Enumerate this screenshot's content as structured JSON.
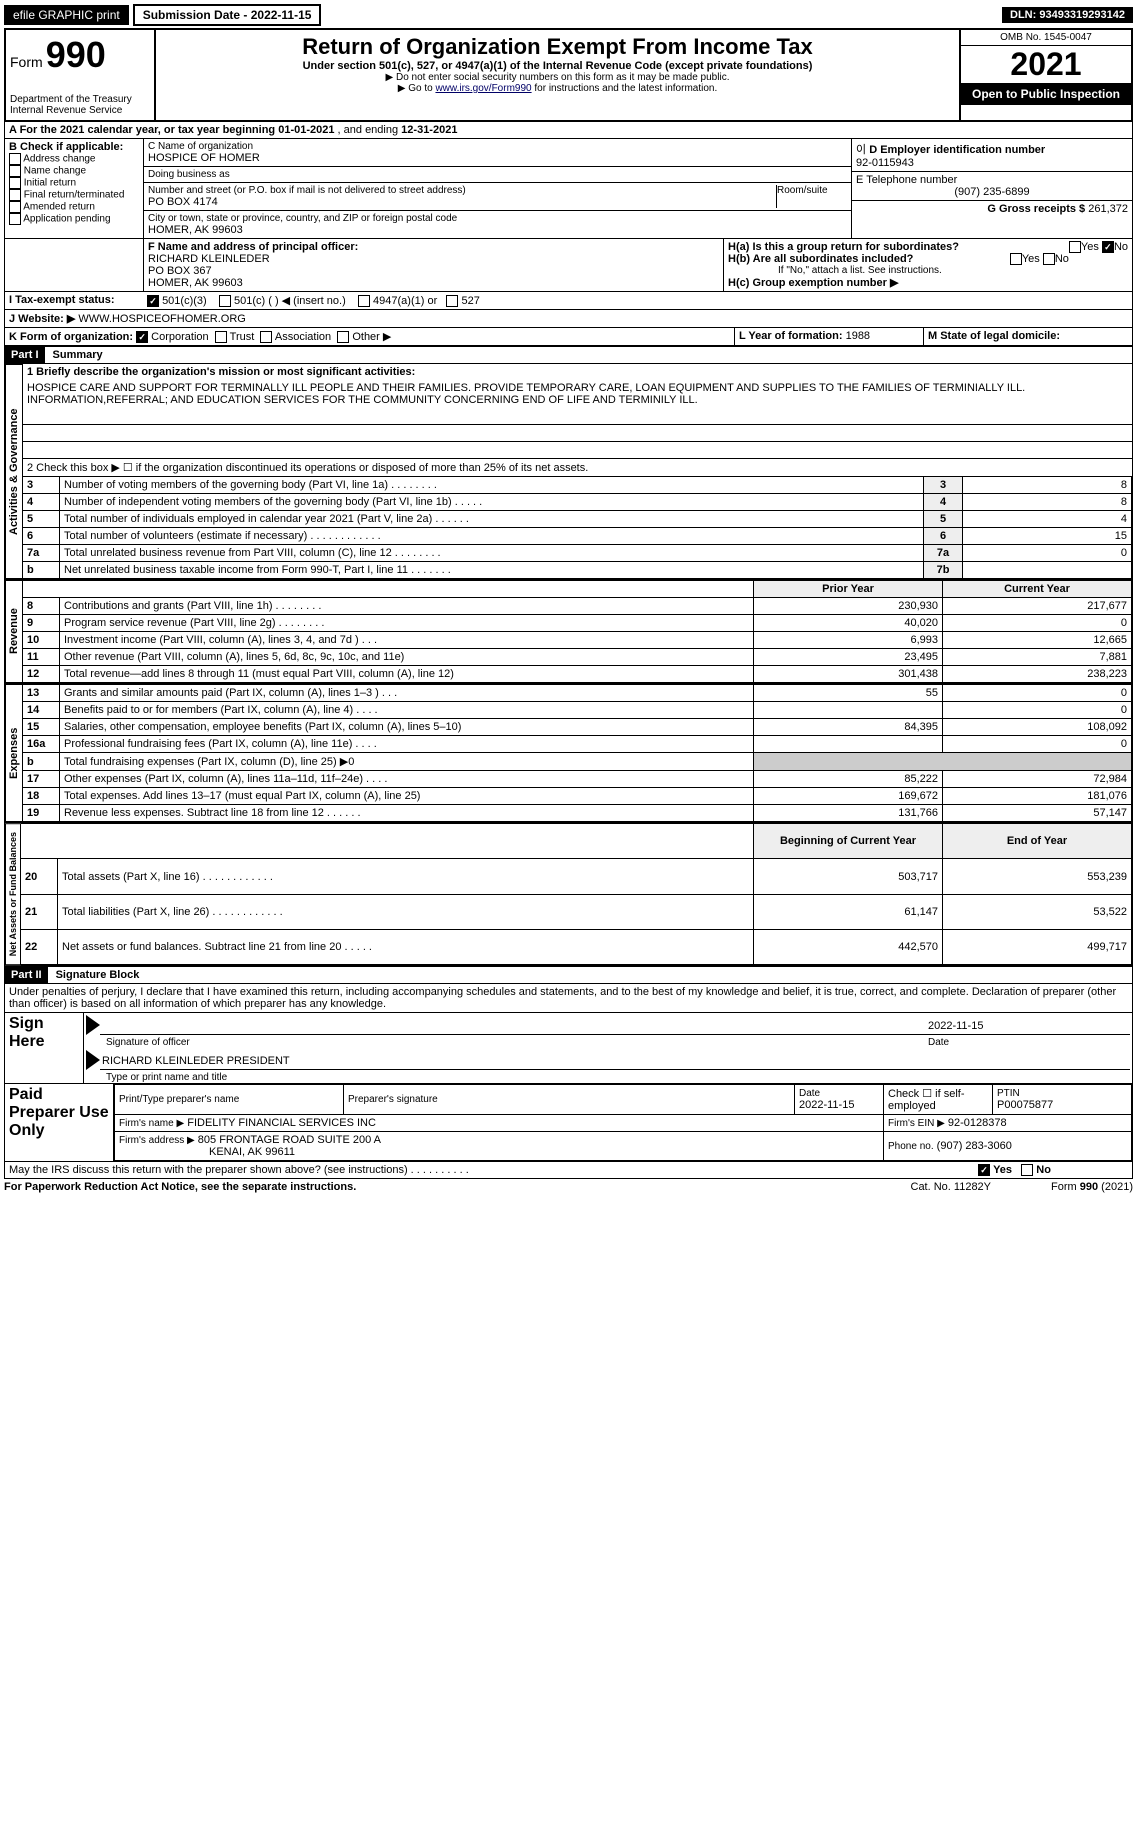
{
  "topbar": {
    "efile": "efile GRAPHIC print",
    "subdate_label": "Submission Date - 2022-11-15",
    "dln": "DLN: 93493319293142"
  },
  "header": {
    "form_word": "Form",
    "form_no": "990",
    "dept": "Department of the Treasury",
    "irs": "Internal Revenue Service",
    "title": "Return of Organization Exempt From Income Tax",
    "subtitle": "Under section 501(c), 527, or 4947(a)(1) of the Internal Revenue Code (except private foundations)",
    "note1": "▶ Do not enter social security numbers on this form as it may be made public.",
    "note2_pre": "▶ Go to ",
    "note2_link": "www.irs.gov/Form990",
    "note2_post": " for instructions and the latest information.",
    "omb": "OMB No. 1545-0047",
    "year": "2021",
    "public": "Open to Public Inspection"
  },
  "a_line": {
    "text_pre": "A For the 2021 calendar year, or tax year beginning ",
    "begin": "01-01-2021",
    "mid": "    , and ending ",
    "end": "12-31-2021"
  },
  "b": {
    "label": "B Check if applicable:",
    "items": [
      "Address change",
      "Name change",
      "Initial return",
      "Final return/terminated",
      "Amended return",
      "Application pending"
    ]
  },
  "c": {
    "label": "C Name of organization",
    "name": "HOSPICE OF HOMER",
    "dba_label": "Doing business as",
    "dba": "",
    "addr_label": "Number and street (or P.O. box if mail is not delivered to street address)",
    "room_label": "Room/suite",
    "addr": "PO BOX 4174",
    "city_label": "City or town, state or province, country, and ZIP or foreign postal code",
    "city": "HOMER, AK  99603"
  },
  "d": {
    "label": "D Employer identification number",
    "value": "92-0115943"
  },
  "e": {
    "label": "E Telephone number",
    "value": "(907) 235-6899"
  },
  "g": {
    "label": "G Gross receipts $",
    "value": "261,372"
  },
  "f": {
    "label": "F Name and address of principal officer:",
    "name": "RICHARD KLEINLEDER",
    "addr1": "PO BOX 367",
    "addr2": "HOMER, AK  99603"
  },
  "h": {
    "a": "H(a)  Is this a group return for subordinates?",
    "b": "H(b)  Are all subordinates included?",
    "note": "If \"No,\" attach a list. See instructions.",
    "c": "H(c)  Group exemption number ▶",
    "yes": "Yes",
    "no": "No"
  },
  "i": {
    "label": "I    Tax-exempt status:",
    "opts": [
      "501(c)(3)",
      "501(c) (   ) ◀ (insert no.)",
      "4947(a)(1) or",
      "527"
    ]
  },
  "j": {
    "label": "J   Website: ▶",
    "value": "WWW.HOSPICEOFHOMER.ORG"
  },
  "k": {
    "label": "K Form of organization:",
    "opts": [
      "Corporation",
      "Trust",
      "Association",
      "Other ▶"
    ]
  },
  "l": {
    "label": "L Year of formation:",
    "value": "1988"
  },
  "m": {
    "label": "M State of legal domicile:",
    "value": ""
  },
  "part1": {
    "tag": "Part I",
    "title": "Summary",
    "q1": "1  Briefly describe the organization's mission or most significant activities:",
    "mission": "HOSPICE CARE AND SUPPORT FOR TERMINALLY ILL PEOPLE AND THEIR FAMILIES. PROVIDE TEMPORARY CARE, LOAN EQUIPMENT AND SUPPLIES TO THE FAMILIES OF TERMINIALLY ILL. INFORMATION,REFERRAL; AND EDUCATION SERVICES FOR THE COMMUNITY CONCERNING END OF LIFE AND TERMINILY ILL.",
    "q2": "2   Check this box ▶ ☐  if the organization discontinued its operations or disposed of more than 25% of its net assets.",
    "rows_top": [
      {
        "n": "3",
        "t": "Number of voting members of the governing body (Part VI, line 1a)   .    .    .    .    .    .    .    .",
        "box": "3",
        "v": "8"
      },
      {
        "n": "4",
        "t": "Number of independent voting members of the governing body (Part VI, line 1b)   .    .    .    .    .",
        "box": "4",
        "v": "8"
      },
      {
        "n": "5",
        "t": "Total number of individuals employed in calendar year 2021 (Part V, line 2a)   .    .    .    .    .    .",
        "box": "5",
        "v": "4"
      },
      {
        "n": "6",
        "t": "Total number of volunteers (estimate if necessary)   .    .    .    .    .    .    .    .    .    .    .    .",
        "box": "6",
        "v": "15"
      },
      {
        "n": "7a",
        "t": "Total unrelated business revenue from Part VIII, column (C), line 12   .    .    .    .    .    .    .    .",
        "box": "7a",
        "v": "0"
      },
      {
        "n": "b",
        "t": "Net unrelated business taxable income from Form 990-T, Part I, line 11   .    .    .    .    .    .    .",
        "box": "7b",
        "v": ""
      }
    ],
    "col_prior": "Prior Year",
    "col_curr": "Current Year",
    "col_boy": "Beginning of Current Year",
    "col_eoy": "End of Year",
    "rev": [
      {
        "n": "8",
        "t": "Contributions and grants (Part VIII, line 1h)   .    .    .    .    .    .    .    .",
        "p": "230,930",
        "c": "217,677"
      },
      {
        "n": "9",
        "t": "Program service revenue (Part VIII, line 2g)   .    .    .    .    .    .    .    .",
        "p": "40,020",
        "c": "0"
      },
      {
        "n": "10",
        "t": "Investment income (Part VIII, column (A), lines 3, 4, and 7d )   .    .    .",
        "p": "6,993",
        "c": "12,665"
      },
      {
        "n": "11",
        "t": "Other revenue (Part VIII, column (A), lines 5, 6d, 8c, 9c, 10c, and 11e)",
        "p": "23,495",
        "c": "7,881"
      },
      {
        "n": "12",
        "t": "Total revenue—add lines 8 through 11 (must equal Part VIII, column (A), line 12)",
        "p": "301,438",
        "c": "238,223"
      }
    ],
    "exp": [
      {
        "n": "13",
        "t": "Grants and similar amounts paid (Part IX, column (A), lines 1–3 )   .    .    .",
        "p": "55",
        "c": "0"
      },
      {
        "n": "14",
        "t": "Benefits paid to or for members (Part IX, column (A), line 4)   .    .    .    .",
        "p": "",
        "c": "0"
      },
      {
        "n": "15",
        "t": "Salaries, other compensation, employee benefits (Part IX, column (A), lines 5–10)",
        "p": "84,395",
        "c": "108,092"
      },
      {
        "n": "16a",
        "t": "Professional fundraising fees (Part IX, column (A), line 11e)   .    .    .    .",
        "p": "",
        "c": "0"
      },
      {
        "n": "b",
        "t": "Total fundraising expenses (Part IX, column (D), line 25) ▶0",
        "p": null,
        "c": null
      },
      {
        "n": "17",
        "t": "Other expenses (Part IX, column (A), lines 11a–11d, 11f–24e)   .    .    .    .",
        "p": "85,222",
        "c": "72,984"
      },
      {
        "n": "18",
        "t": "Total expenses. Add lines 13–17 (must equal Part IX, column (A), line 25)",
        "p": "169,672",
        "c": "181,076"
      },
      {
        "n": "19",
        "t": "Revenue less expenses. Subtract line 18 from line 12   .    .    .    .    .    .",
        "p": "131,766",
        "c": "57,147"
      }
    ],
    "net": [
      {
        "n": "20",
        "t": "Total assets (Part X, line 16)   .    .    .    .    .    .    .    .    .    .    .    .",
        "p": "503,717",
        "c": "553,239"
      },
      {
        "n": "21",
        "t": "Total liabilities (Part X, line 26)   .    .    .    .    .    .    .    .    .    .    .    .",
        "p": "61,147",
        "c": "53,522"
      },
      {
        "n": "22",
        "t": "Net assets or fund balances. Subtract line 21 from line 20   .    .    .    .    .",
        "p": "442,570",
        "c": "499,717"
      }
    ],
    "vtabs": {
      "gov": "Activities & Governance",
      "rev": "Revenue",
      "exp": "Expenses",
      "net": "Net Assets or Fund Balances"
    }
  },
  "part2": {
    "tag": "Part II",
    "title": "Signature Block",
    "decl": "Under penalties of perjury, I declare that I have examined this return, including accompanying schedules and statements, and to the best of my knowledge and belief, it is true, correct, and complete. Declaration of preparer (other than officer) is based on all information of which preparer has any knowledge.",
    "sign_here": "Sign Here",
    "sig_officer": "Signature of officer",
    "date": "Date",
    "sig_date": "2022-11-15",
    "officer": "RICHARD KLEINLEDER  PRESIDENT",
    "type_name": "Type or print name and title",
    "paid": "Paid Preparer Use Only",
    "pp_name_label": "Print/Type preparer's name",
    "pp_sig_label": "Preparer's signature",
    "pp_date_label": "Date",
    "pp_date": "2022-11-15",
    "pp_check": "Check ☐ if self-employed",
    "ptin_label": "PTIN",
    "ptin": "P00075877",
    "firm_name_label": "Firm's name    ▶",
    "firm_name": "FIDELITY FINANCIAL SERVICES INC",
    "firm_ein_label": "Firm's EIN ▶",
    "firm_ein": "92-0128378",
    "firm_addr_label": "Firm's address ▶",
    "firm_addr1": "805 FRONTAGE ROAD SUITE 200 A",
    "firm_addr2": "KENAI, AK  99611",
    "phone_label": "Phone no.",
    "phone": "(907) 283-3060",
    "may_irs": "May the IRS discuss this return with the preparer shown above? (see instructions)   .    .    .    .    .    .    .    .    .    .",
    "yes": "Yes",
    "no": "No"
  },
  "footer": {
    "pra": "For Paperwork Reduction Act Notice, see the separate instructions.",
    "cat": "Cat. No. 11282Y",
    "form": "Form 990 (2021)"
  }
}
